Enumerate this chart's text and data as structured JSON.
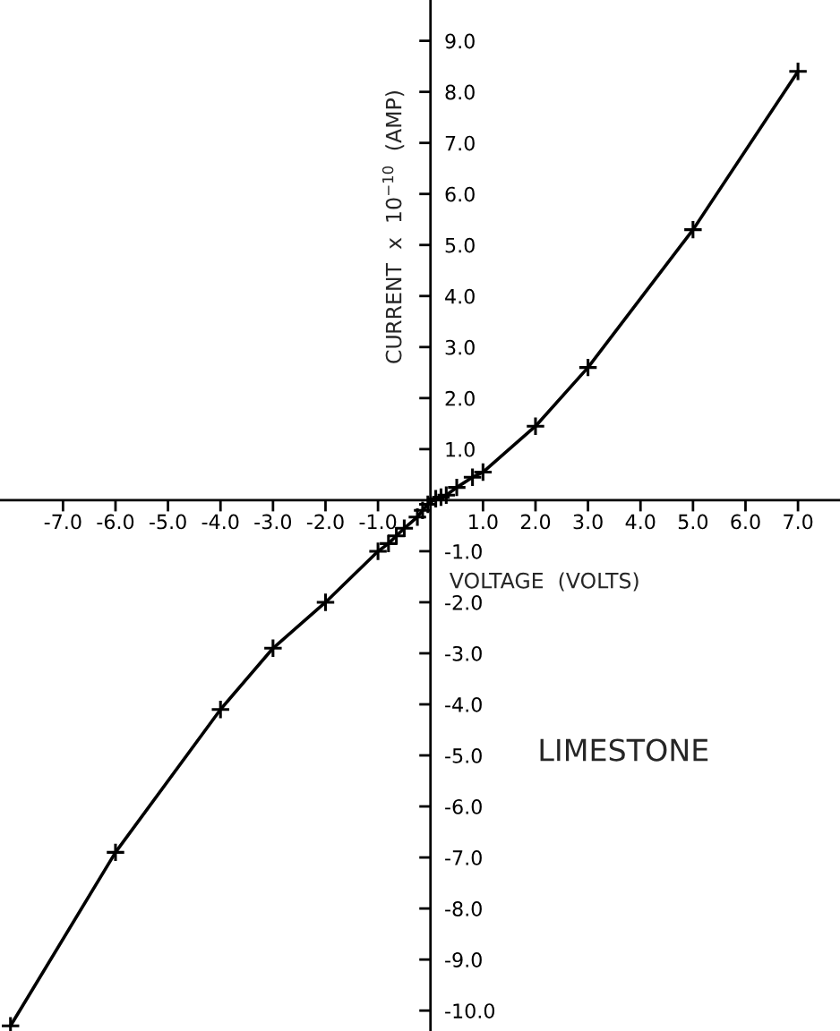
{
  "chart_data": {
    "type": "line",
    "xlabel": "VOLTAGE  (VOLTS)",
    "ylabel": "CURRENT  x  10$^{−10}$  (AMP)",
    "annotations": [
      "LIMESTONE"
    ],
    "x": [
      -8.0,
      -6.0,
      -4.0,
      -3.0,
      -2.0,
      -1.0,
      -0.8,
      -0.65,
      -0.5,
      -0.25,
      -0.15,
      -0.05,
      0.1,
      0.2,
      0.3,
      0.5,
      0.8,
      1.0,
      2.0,
      3.0,
      5.0,
      7.0
    ],
    "series": [
      {
        "color": "#000000",
        "values": [
          -10.3,
          -6.9,
          -4.1,
          -2.9,
          -2.0,
          -1.0,
          -0.85,
          -0.7,
          -0.55,
          -0.33,
          -0.2,
          -0.08,
          0.03,
          0.06,
          0.1,
          0.25,
          0.45,
          0.55,
          1.45,
          2.6,
          5.3,
          8.4
        ]
      }
    ],
    "marker": "cross",
    "line_style": "solid",
    "grid": false,
    "legend": false,
    "xlim": [
      -8.2,
      7.8
    ],
    "ylim": [
      -10.4,
      9.8
    ],
    "xticks": [
      {
        "value": -7,
        "label": "-7.0"
      },
      {
        "value": -6,
        "label": "-6.0"
      },
      {
        "value": -5,
        "label": "-5.0"
      },
      {
        "value": -4,
        "label": "-4.0"
      },
      {
        "value": -3,
        "label": "-3.0"
      },
      {
        "value": -2,
        "label": "-2.0"
      },
      {
        "value": -1,
        "label": "-1.0"
      },
      {
        "value": 1,
        "label": "1.0"
      },
      {
        "value": 2,
        "label": "2.0"
      },
      {
        "value": 3,
        "label": "3.0"
      },
      {
        "value": 4,
        "label": "4.0"
      },
      {
        "value": 5,
        "label": "5.0"
      },
      {
        "value": 6,
        "label": "6.0"
      },
      {
        "value": 7,
        "label": "7.0"
      }
    ],
    "yticks": [
      {
        "value": -10,
        "label": "-10.0"
      },
      {
        "value": -9,
        "label": "-9.0"
      },
      {
        "value": -8,
        "label": "-8.0"
      },
      {
        "value": -7,
        "label": "-7.0"
      },
      {
        "value": -6,
        "label": "-6.0"
      },
      {
        "value": -5,
        "label": "-5.0"
      },
      {
        "value": -4,
        "label": "-4.0"
      },
      {
        "value": -3,
        "label": "-3.0"
      },
      {
        "value": -2,
        "label": "-2.0"
      },
      {
        "value": -1,
        "label": "-1.0"
      },
      {
        "value": 1,
        "label": "1.0"
      },
      {
        "value": 2,
        "label": "2.0"
      },
      {
        "value": 3,
        "label": "3.0"
      },
      {
        "value": 4,
        "label": "4.0"
      },
      {
        "value": 5,
        "label": "5.0"
      },
      {
        "value": 6,
        "label": "6.0"
      },
      {
        "value": 7,
        "label": "7.0"
      },
      {
        "value": 8,
        "label": "8.0"
      },
      {
        "value": 9,
        "label": "9.0"
      }
    ]
  }
}
